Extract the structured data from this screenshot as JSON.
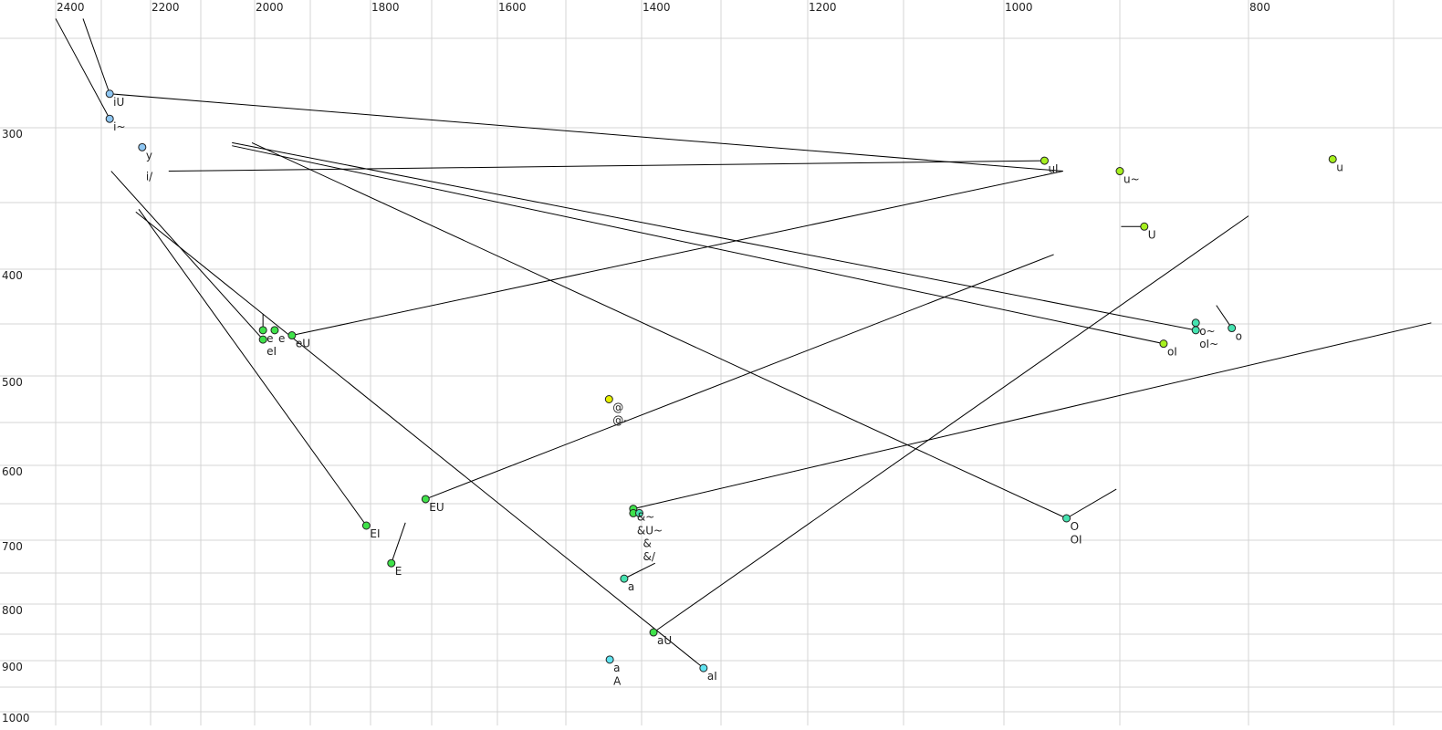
{
  "chart_data": {
    "type": "scatter",
    "title": "",
    "xlabel": "",
    "ylabel": "",
    "x_axis": {
      "reversed": true,
      "position": "top",
      "range": [
        2400,
        700
      ],
      "tick_labels": [
        "2400",
        "2200",
        "2000",
        "1800",
        "1600",
        "1400",
        "1200",
        "1000",
        "800"
      ],
      "gridlines": [
        2400,
        2300,
        2200,
        2100,
        2000,
        1900,
        1800,
        1700,
        1600,
        1500,
        1400,
        1300,
        1200,
        1100,
        1000,
        900,
        800,
        700
      ]
    },
    "y_axis": {
      "reversed": true,
      "range": [
        250,
        1000
      ],
      "tick_labels": [
        "300",
        "400",
        "500",
        "600",
        "700",
        "800",
        "900",
        "1000"
      ],
      "gridlines": [
        250,
        300,
        350,
        400,
        450,
        500,
        550,
        600,
        650,
        700,
        750,
        800,
        850,
        900,
        950,
        1000
      ]
    },
    "grid": true,
    "colors": {
      "blue": "#8ec6f2",
      "cyan": "#5fe3f0",
      "lime": "#a6f01e",
      "yellow": "#e6f000",
      "green": "#3fe24a",
      "teal": "#45e3b0",
      "grey_label": "#707088"
    },
    "points": [
      {
        "label": "iU",
        "f2": 2283,
        "f1": 281,
        "color": "blue"
      },
      {
        "label": "i~",
        "f2": 2283,
        "f1": 295,
        "color": "blue"
      },
      {
        "label": "y",
        "f2": 2217,
        "f1": 313,
        "color": "blue"
      },
      {
        "label": "i/",
        "f2": 2217,
        "f1": 329,
        "color": null
      },
      {
        "label": "u",
        "f2": 742,
        "f1": 321,
        "color": "lime"
      },
      {
        "label": "uI",
        "f2": 965,
        "f1": 322,
        "color": "lime"
      },
      {
        "label": "u~",
        "f2": 900,
        "f1": 329,
        "color": "lime"
      },
      {
        "label": "U",
        "f2": 881,
        "f1": 368,
        "color": "lime"
      },
      {
        "label": "o~",
        "f2": 841,
        "f1": 449,
        "color": "teal"
      },
      {
        "label": "oI~",
        "f2": 841,
        "f1": 456,
        "color": "teal"
      },
      {
        "label": "o",
        "f2": 813,
        "f1": 454,
        "color": "teal"
      },
      {
        "label": "oI",
        "f2": 866,
        "f1": 469,
        "color": "lime"
      },
      {
        "label": "e",
        "f2": 1985,
        "f1": 456,
        "color": "green"
      },
      {
        "label": "e",
        "f2": 1964,
        "f1": 456,
        "color": "green"
      },
      {
        "label": "eI",
        "f2": 1985,
        "f1": 465,
        "color": "green"
      },
      {
        "label": "eU",
        "f2": 1933,
        "f1": 461,
        "color": "green"
      },
      {
        "label": "@",
        "f2": 1443,
        "f1": 525,
        "color": "yellow"
      },
      {
        "label": "@-",
        "f2": 1443,
        "f1": 535,
        "color": null
      },
      {
        "label": "EU",
        "f2": 1710,
        "f1": 644,
        "color": "green"
      },
      {
        "label": "&~",
        "f2": 1411,
        "f1": 657,
        "color": "green"
      },
      {
        "label": "&U~",
        "f2": 1411,
        "f1": 663,
        "color": "green"
      },
      {
        "label": "&",
        "f2": 1403,
        "f1": 663,
        "color": "teal"
      },
      {
        "label": "&/",
        "f2": 1403,
        "f1": 690,
        "color": null
      },
      {
        "label": "EI",
        "f2": 1807,
        "f1": 680,
        "color": "green"
      },
      {
        "label": "E",
        "f2": 1766,
        "f1": 735,
        "color": "green"
      },
      {
        "label": "a",
        "f2": 1423,
        "f1": 759,
        "color": "teal"
      },
      {
        "label": "aU",
        "f2": 1385,
        "f1": 847,
        "color": "green"
      },
      {
        "label": "a",
        "f2": 1442,
        "f1": 898,
        "color": "cyan"
      },
      {
        "label": "A",
        "f2": 1442,
        "f1": 915,
        "color": null
      },
      {
        "label": "aI",
        "f2": 1322,
        "f1": 914,
        "color": "cyan"
      },
      {
        "label": "O",
        "f2": 946,
        "f1": 670,
        "color": "teal"
      },
      {
        "label": "OI",
        "f2": 946,
        "f1": 683,
        "color": null
      }
    ],
    "trajectories": [
      {
        "from": [
          2400,
          239
        ],
        "to": [
          2283,
          295
        ]
      },
      {
        "from": [
          2340,
          239
        ],
        "to": [
          2283,
          281
        ]
      },
      {
        "from": [
          2283,
          281
        ],
        "to": [
          949,
          329
        ]
      },
      {
        "from": [
          2164,
          329
        ],
        "to": [
          965,
          322
        ]
      },
      {
        "from": [
          2042,
          310
        ],
        "to": [
          841,
          456
        ]
      },
      {
        "from": [
          2042,
          312
        ],
        "to": [
          866,
          469
        ]
      },
      {
        "from": [
          2005,
          310
        ],
        "to": [
          946,
          670
        ]
      },
      {
        "from": [
          946,
          670
        ],
        "to": [
          903,
          631
        ]
      },
      {
        "from": [
          2280,
          329
        ],
        "to": [
          1985,
          465
        ]
      },
      {
        "from": [
          2224,
          355
        ],
        "to": [
          1807,
          680
        ]
      },
      {
        "from": [
          2230,
          357
        ],
        "to": [
          1322,
          914
        ]
      },
      {
        "from": [
          1985,
          441
        ],
        "to": [
          1985,
          456
        ]
      },
      {
        "from": [
          1933,
          461
        ],
        "to": [
          949,
          329
        ]
      },
      {
        "from": [
          1710,
          644
        ],
        "to": [
          957,
          389
        ]
      },
      {
        "from": [
          1411,
          657
        ],
        "to": [
          674,
          449
        ]
      },
      {
        "from": [
          1385,
          847
        ],
        "to": [
          800,
          360
        ]
      },
      {
        "from": [
          1423,
          759
        ],
        "to": [
          1383,
          735
        ]
      },
      {
        "from": [
          1766,
          735
        ],
        "to": [
          1743,
          676
        ]
      },
      {
        "from": [
          881,
          368
        ],
        "to": [
          899,
          368
        ]
      },
      {
        "from": [
          813,
          454
        ],
        "to": [
          825,
          433
        ]
      }
    ]
  }
}
